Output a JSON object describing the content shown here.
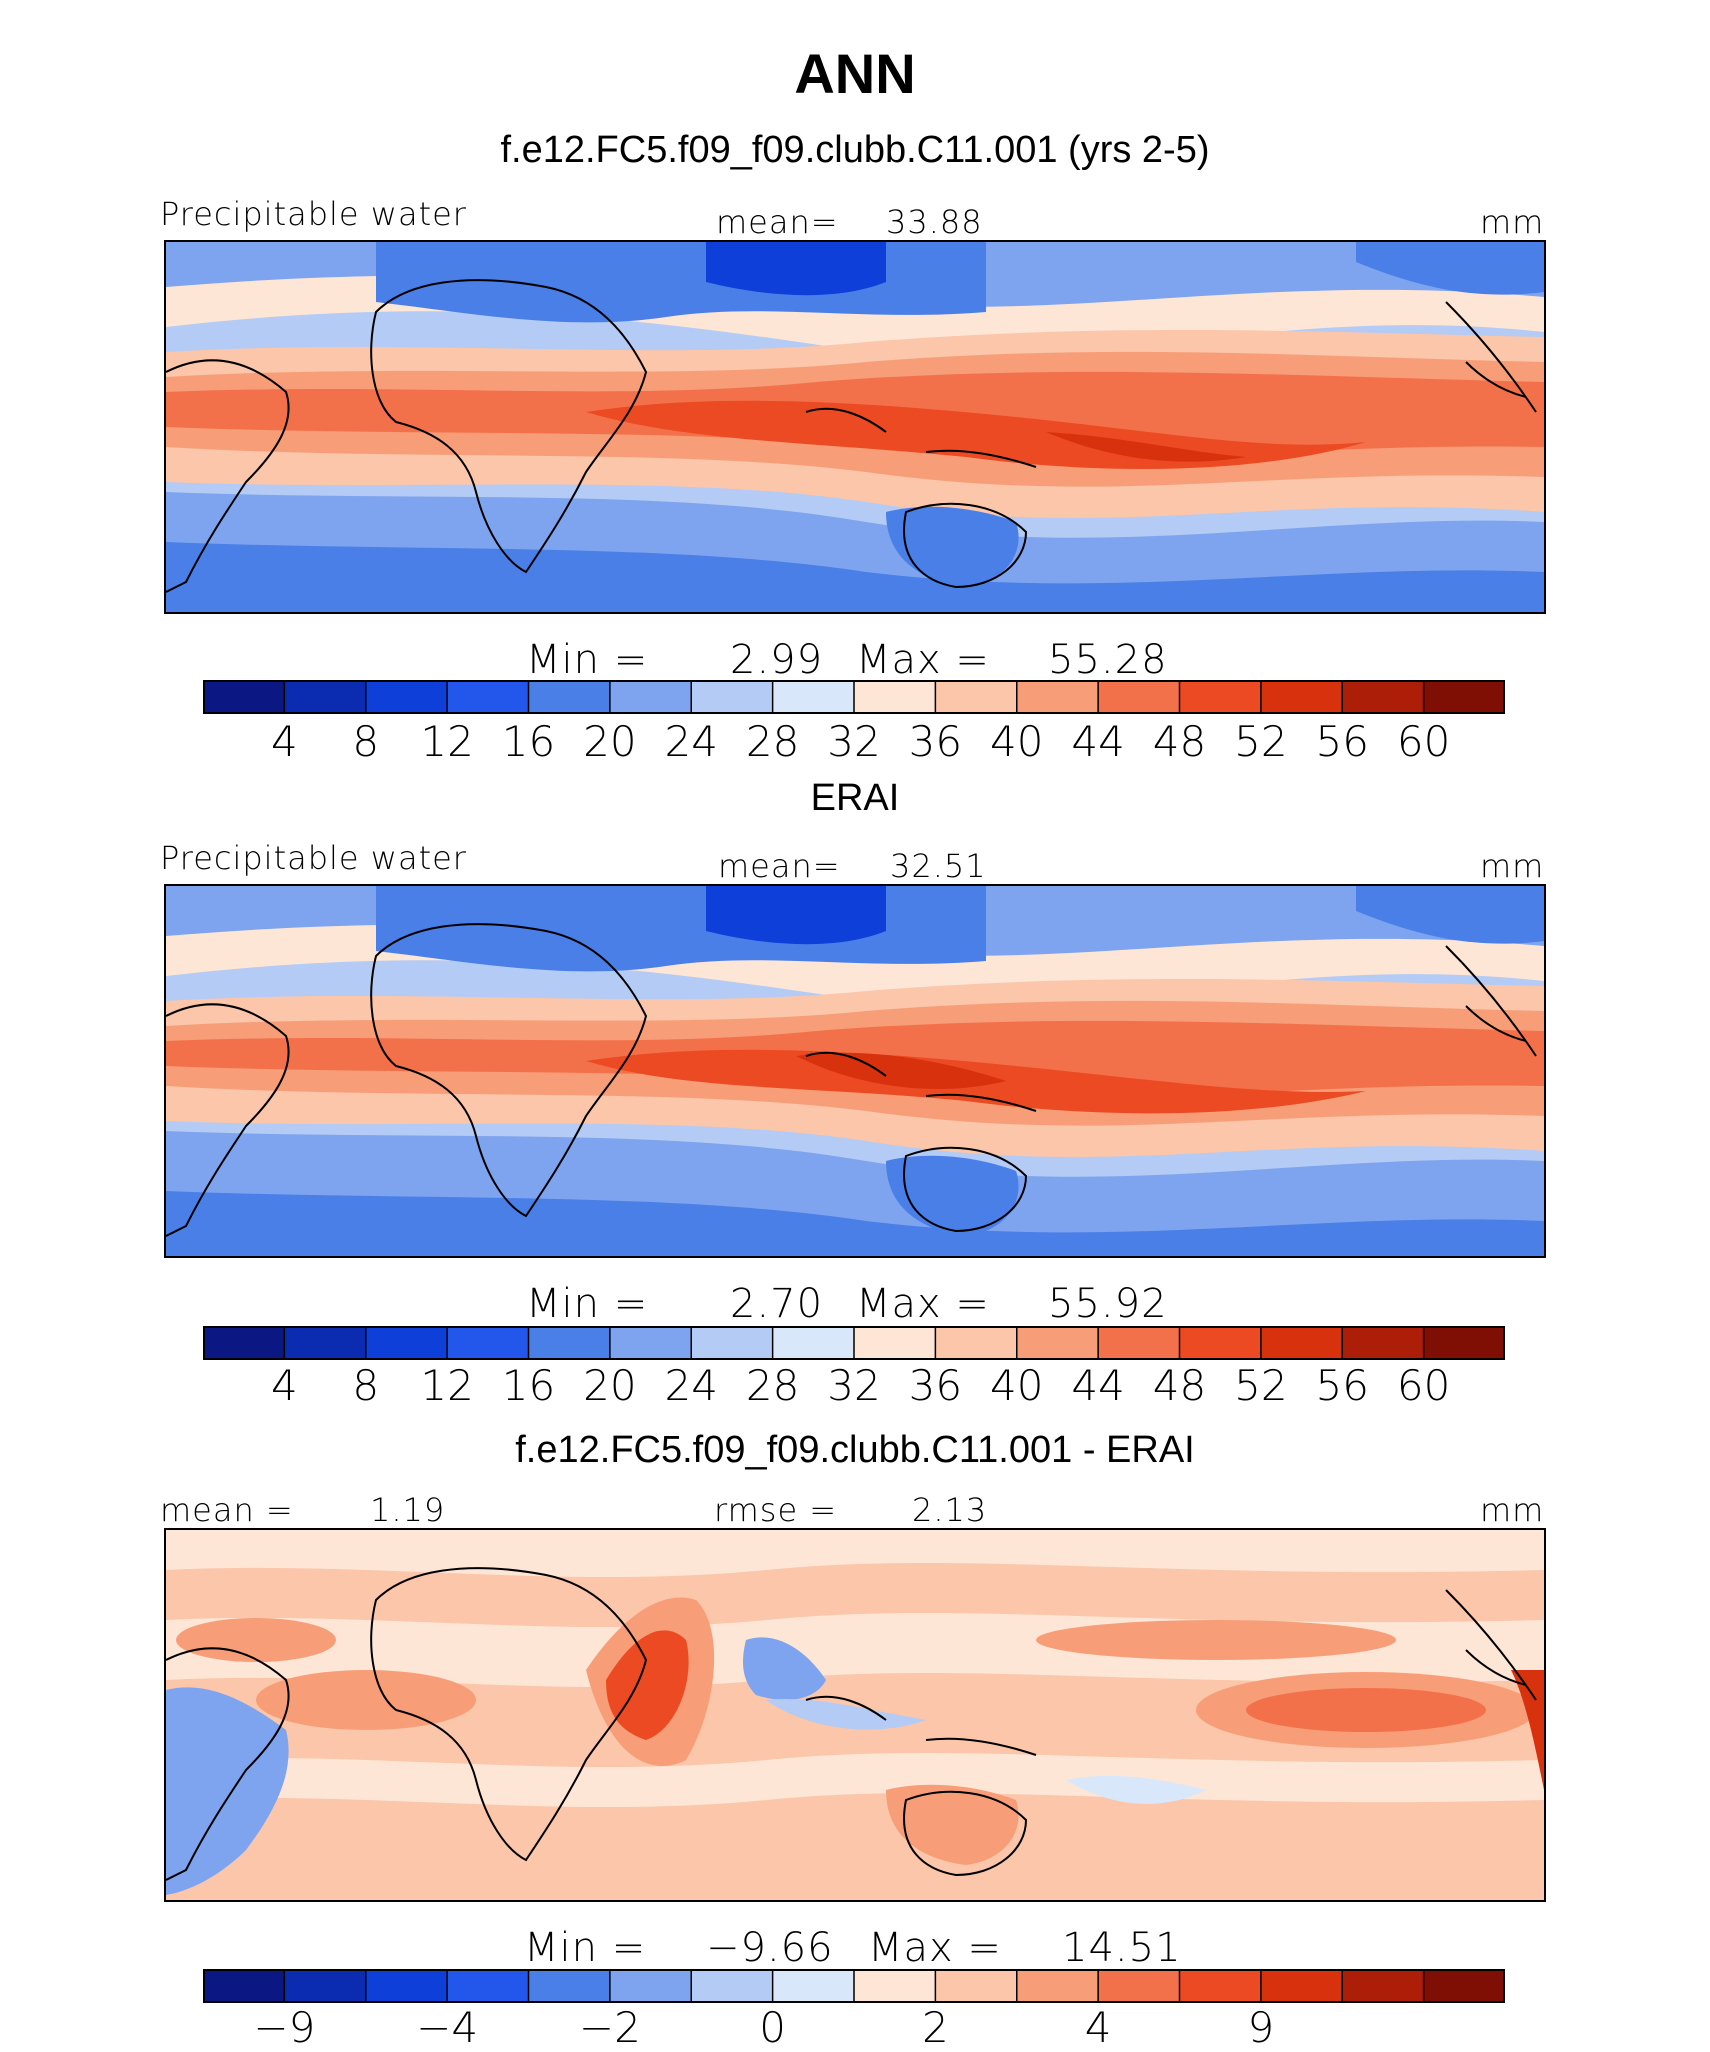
{
  "chart_data": [
    {
      "type": "heatmap",
      "main_title": "ANN",
      "title": "f.e12.FC5.f09_f09.clubb.C11.001 (yrs 2-5)",
      "variable": "Precipitable water",
      "units": "mm",
      "mean_label": "mean=",
      "mean_value": "33.88",
      "min_label": "Min =",
      "min_value": "2.99",
      "max_label": "Max =",
      "max_value": "55.28",
      "colorbar_ticks": [
        "4",
        "8",
        "12",
        "16",
        "20",
        "24",
        "28",
        "32",
        "36",
        "40",
        "44",
        "48",
        "52",
        "56",
        "60"
      ],
      "colors": [
        "#0b1883",
        "#0b2cb0",
        "#0e3fd9",
        "#2357ec",
        "#4a7fe8",
        "#7ea4ef",
        "#b3cbf5",
        "#d9e7fa",
        "#fde6d6",
        "#fbc6aa",
        "#f79e79",
        "#f3714a",
        "#ec4a22",
        "#d7310e",
        "#ad1e08",
        "#7f0e05"
      ]
    },
    {
      "type": "heatmap",
      "title": "ERAI",
      "variable": "Precipitable water",
      "units": "mm",
      "mean_label": "mean=",
      "mean_value": "32.51",
      "min_label": "Min =",
      "min_value": "2.70",
      "max_label": "Max =",
      "max_value": "55.92",
      "colorbar_ticks": [
        "4",
        "8",
        "12",
        "16",
        "20",
        "24",
        "28",
        "32",
        "36",
        "40",
        "44",
        "48",
        "52",
        "56",
        "60"
      ],
      "colors": [
        "#0b1883",
        "#0b2cb0",
        "#0e3fd9",
        "#2357ec",
        "#4a7fe8",
        "#7ea4ef",
        "#b3cbf5",
        "#d9e7fa",
        "#fde6d6",
        "#fbc6aa",
        "#f79e79",
        "#f3714a",
        "#ec4a22",
        "#d7310e",
        "#ad1e08",
        "#7f0e05"
      ]
    },
    {
      "type": "heatmap",
      "title": "f.e12.FC5.f09_f09.clubb.C11.001 - ERAI",
      "units": "mm",
      "mean_label": "mean =",
      "mean_value": "1.19",
      "rmse_label": "rmse =",
      "rmse_value": "2.13",
      "min_label": "Min =",
      "min_value": "−9.66",
      "max_label": "Max =",
      "max_value": "14.51",
      "colorbar_ticks": [
        "−9",
        "−4",
        "−2",
        "0",
        "2",
        "4",
        "9"
      ],
      "colors": [
        "#0b1883",
        "#0b2cb0",
        "#0e3fd9",
        "#2357ec",
        "#4a7fe8",
        "#7ea4ef",
        "#b3cbf5",
        "#d9e7fa",
        "#fde6d6",
        "#fbc6aa",
        "#f79e79",
        "#f3714a",
        "#ec4a22",
        "#d7310e",
        "#ad1e08",
        "#7f0e05"
      ]
    }
  ]
}
